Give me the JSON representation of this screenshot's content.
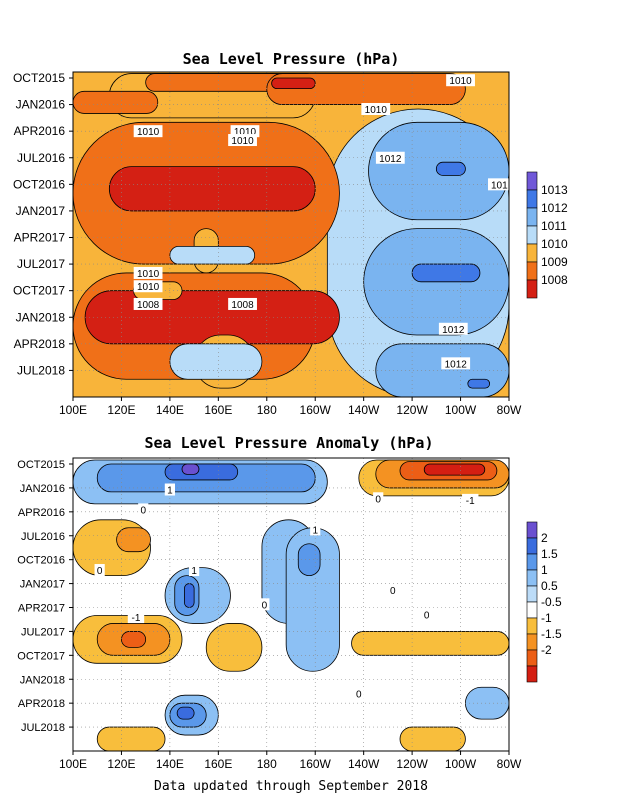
{
  "chart_data": [
    {
      "type": "heatmap",
      "title": "Sea Level Pressure (hPa)",
      "x_tick_labels": [
        "100E",
        "120E",
        "140E",
        "160E",
        "180",
        "160W",
        "140W",
        "120W",
        "100W",
        "80W"
      ],
      "y_tick_labels": [
        "OCT2015",
        "JAN2016",
        "APR2016",
        "JUL2016",
        "OCT2016",
        "JAN2017",
        "APR2017",
        "JUL2017",
        "OCT2017",
        "JAN2018",
        "APR2018",
        "JUL2018"
      ],
      "x_range_deg_east": [
        100,
        280
      ],
      "time_range": [
        "2015-10",
        "2018-09"
      ],
      "grid": true,
      "legend_placement": "right",
      "legend": {
        "levels": [
          "1013",
          "1012",
          "1011",
          "1010",
          "1009",
          "1008"
        ],
        "colors": [
          "#7058d8",
          "#3f78e6",
          "#7ab4f0",
          "#b8dcf8",
          "#f8b43a",
          "#f07018",
          "#d42014"
        ]
      },
      "contour_labels": [
        {
          "text": "1010",
          "lon": 260,
          "t": 0.25
        },
        {
          "text": "1010",
          "lon": 225,
          "t": 3.5
        },
        {
          "text": "1010",
          "lon": 131,
          "t": 6.0
        },
        {
          "text": "1010",
          "lon": 171,
          "t": 6.0
        },
        {
          "text": "1010",
          "lon": 170,
          "t": 7.0
        },
        {
          "text": "1012",
          "lon": 231,
          "t": 9.0
        },
        {
          "text": "101",
          "lon": 276,
          "t": 12.0
        },
        {
          "text": "1010",
          "lon": 131,
          "t": 22.0
        },
        {
          "text": "1010",
          "lon": 131,
          "t": 23.5
        },
        {
          "text": "1008",
          "lon": 131,
          "t": 25.5
        },
        {
          "text": "1008",
          "lon": 170,
          "t": 25.5
        },
        {
          "text": "1012",
          "lon": 257,
          "t": 28.3
        },
        {
          "text": "1012",
          "lon": 258,
          "t": 32.2
        }
      ],
      "regions": [
        {
          "level": "1010",
          "lon": [
            115,
            200
          ],
          "t": [
            -0.5,
            4.5
          ]
        },
        {
          "level": "1009",
          "lon": [
            130,
            200
          ],
          "t": [
            -0.5,
            1.5
          ]
        },
        {
          "level": "1009",
          "lon": [
            100,
            135
          ],
          "t": [
            1.5,
            4
          ]
        },
        {
          "level": "1009",
          "lon": [
            180,
            262
          ],
          "t": [
            -0.5,
            3
          ]
        },
        {
          "level": "1008",
          "lon": [
            182,
            200
          ],
          "t": [
            0,
            1.2
          ]
        },
        {
          "level": "1011",
          "lon": [
            205,
            280
          ],
          "t": [
            3.5,
            36
          ]
        },
        {
          "level": "1012",
          "lon": [
            222,
            280
          ],
          "t": [
            5,
            16
          ]
        },
        {
          "level": "1013",
          "lon": [
            250,
            262
          ],
          "t": [
            9.5,
            11
          ]
        },
        {
          "level": "1009",
          "lon": [
            100,
            210
          ],
          "t": [
            5,
            21
          ]
        },
        {
          "level": "1008",
          "lon": [
            115,
            200
          ],
          "t": [
            10,
            15
          ]
        },
        {
          "level": "1010",
          "lon": [
            150,
            160
          ],
          "t": [
            17,
            22
          ]
        },
        {
          "level": "1011",
          "lon": [
            140,
            175
          ],
          "t": [
            19,
            21
          ]
        },
        {
          "level": "1012",
          "lon": [
            220,
            280
          ],
          "t": [
            17,
            29
          ]
        },
        {
          "level": "1013",
          "lon": [
            240,
            268
          ],
          "t": [
            21,
            23
          ]
        },
        {
          "level": "1009",
          "lon": [
            100,
            200
          ],
          "t": [
            22,
            34
          ]
        },
        {
          "level": "1008",
          "lon": [
            105,
            210
          ],
          "t": [
            24,
            30
          ]
        },
        {
          "level": "1010",
          "lon": [
            125,
            145
          ],
          "t": [
            23,
            25
          ]
        },
        {
          "level": "1010",
          "lon": [
            150,
            175
          ],
          "t": [
            29,
            35
          ]
        },
        {
          "level": "1011",
          "lon": [
            140,
            178
          ],
          "t": [
            30,
            34
          ]
        },
        {
          "level": "1012",
          "lon": [
            225,
            280
          ],
          "t": [
            30,
            36
          ]
        },
        {
          "level": "1013",
          "lon": [
            263,
            272
          ],
          "t": [
            34,
            35
          ]
        }
      ]
    },
    {
      "type": "heatmap",
      "title": "Sea Level Pressure Anomaly (hPa)",
      "x_tick_labels": [
        "100E",
        "120E",
        "140E",
        "160E",
        "180",
        "160W",
        "140W",
        "120W",
        "100W",
        "80W"
      ],
      "y_tick_labels": [
        "OCT2015",
        "JAN2016",
        "APR2016",
        "JUL2016",
        "OCT2016",
        "JAN2017",
        "APR2017",
        "JUL2017",
        "OCT2017",
        "JAN2018",
        "APR2018",
        "JUL2018"
      ],
      "x_range_deg_east": [
        100,
        280
      ],
      "time_range": [
        "2015-10",
        "2018-09"
      ],
      "grid": true,
      "legend_placement": "right",
      "legend": {
        "levels": [
          "2",
          "1.5",
          "1",
          "0.5",
          "-0.5",
          "-1",
          "-1.5",
          "-2"
        ],
        "colors": [
          "#6a50d0",
          "#3a6cde",
          "#5a98ea",
          "#8cc0f4",
          "#bcdcf8",
          "#ffffff",
          "#f8be3c",
          "#f49222",
          "#ec5e16",
          "#d41e12"
        ]
      },
      "contour_labels": [
        {
          "text": "1",
          "lon": 140,
          "t": 3.2
        },
        {
          "text": "0",
          "lon": 226,
          "t": 4.3
        },
        {
          "text": "-1",
          "lon": 264,
          "t": 4.5
        },
        {
          "text": "0",
          "lon": 129,
          "t": 5.7
        },
        {
          "text": "1",
          "lon": 200,
          "t": 8.2
        },
        {
          "text": "0",
          "lon": 111,
          "t": 13.3
        },
        {
          "text": "1",
          "lon": 150,
          "t": 13.3
        },
        {
          "text": "0",
          "lon": 232,
          "t": 15.8
        },
        {
          "text": "0",
          "lon": 179,
          "t": 17.6
        },
        {
          "text": "0",
          "lon": 246,
          "t": 18.9
        },
        {
          "text": "-1",
          "lon": 126,
          "t": 19.2
        },
        {
          "text": "0",
          "lon": 218,
          "t": 28.8
        }
      ],
      "regions": [
        {
          "level": "0.5",
          "lon": [
            100,
            205
          ],
          "t": [
            -0.5,
            5
          ]
        },
        {
          "level": "1",
          "lon": [
            110,
            200
          ],
          "t": [
            0,
            3.5
          ]
        },
        {
          "level": "1.5",
          "lon": [
            138,
            168
          ],
          "t": [
            0,
            2
          ]
        },
        {
          "level": "2",
          "lon": [
            145,
            152
          ],
          "t": [
            0,
            1.3
          ]
        },
        {
          "level": "-0.5",
          "lon": [
            218,
            280
          ],
          "t": [
            -0.5,
            4
          ]
        },
        {
          "level": "-1",
          "lon": [
            225,
            280
          ],
          "t": [
            -0.5,
            3
          ]
        },
        {
          "level": "-1.5",
          "lon": [
            235,
            275
          ],
          "t": [
            -0.3,
            2
          ]
        },
        {
          "level": "-2",
          "lon": [
            245,
            270
          ],
          "t": [
            0,
            1.4
          ]
        },
        {
          "level": "-0.5",
          "lon": [
            100,
            132
          ],
          "t": [
            7,
            14
          ]
        },
        {
          "level": "-1",
          "lon": [
            118,
            132
          ],
          "t": [
            8,
            11
          ]
        },
        {
          "level": "0.5",
          "lon": [
            178,
            200
          ],
          "t": [
            7,
            20
          ]
        },
        {
          "level": "0.5",
          "lon": [
            188,
            210
          ],
          "t": [
            8,
            26
          ]
        },
        {
          "level": "1",
          "lon": [
            193,
            202
          ],
          "t": [
            10,
            14
          ]
        },
        {
          "level": "0.5",
          "lon": [
            138,
            165
          ],
          "t": [
            13,
            20
          ]
        },
        {
          "level": "1",
          "lon": [
            142,
            152
          ],
          "t": [
            14,
            19
          ]
        },
        {
          "level": "1.5",
          "lon": [
            146,
            150
          ],
          "t": [
            15,
            18
          ]
        },
        {
          "level": "-0.5",
          "lon": [
            100,
            145
          ],
          "t": [
            19,
            25
          ]
        },
        {
          "level": "-1",
          "lon": [
            110,
            140
          ],
          "t": [
            20,
            24
          ]
        },
        {
          "level": "-1.5",
          "lon": [
            120,
            130
          ],
          "t": [
            21,
            23
          ]
        },
        {
          "level": "-0.5",
          "lon": [
            155,
            178
          ],
          "t": [
            20,
            26
          ]
        },
        {
          "level": "-0.5",
          "lon": [
            215,
            280
          ],
          "t": [
            21,
            24
          ]
        },
        {
          "level": "0.5",
          "lon": [
            138,
            160
          ],
          "t": [
            29,
            34
          ]
        },
        {
          "level": "1",
          "lon": [
            140,
            155
          ],
          "t": [
            30,
            33
          ]
        },
        {
          "level": "1.5",
          "lon": [
            143,
            150
          ],
          "t": [
            30.5,
            32
          ]
        },
        {
          "level": "0.5",
          "lon": [
            262,
            280
          ],
          "t": [
            28,
            32
          ]
        },
        {
          "level": "-0.5",
          "lon": [
            110,
            138
          ],
          "t": [
            33,
            36
          ]
        },
        {
          "level": "-0.5",
          "lon": [
            235,
            262
          ],
          "t": [
            33,
            36
          ]
        }
      ]
    }
  ],
  "footer": "Data updated through September 2018"
}
